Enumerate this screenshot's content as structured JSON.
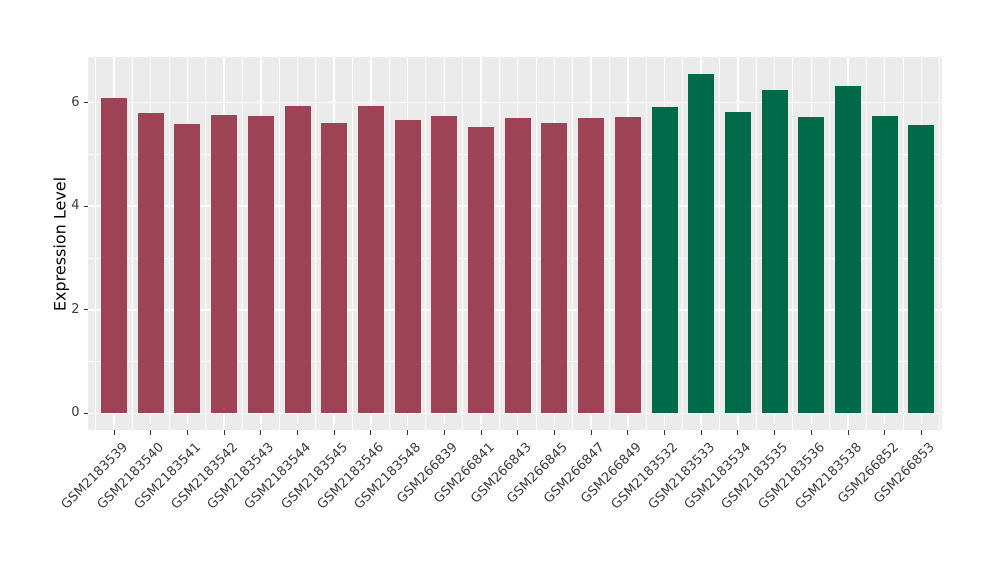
{
  "chart_data": {
    "type": "bar",
    "title": "",
    "xlabel": "",
    "ylabel": "Expression Level",
    "categories": [
      "GSM2183539",
      "GSM2183540",
      "GSM2183541",
      "GSM2183542",
      "GSM2183543",
      "GSM2183544",
      "GSM2183545",
      "GSM2183546",
      "GSM2183548",
      "GSM266839",
      "GSM266841",
      "GSM266843",
      "GSM266845",
      "GSM266847",
      "GSM266849",
      "GSM2183532",
      "GSM2183533",
      "GSM2183534",
      "GSM2183535",
      "GSM2183536",
      "GSM2183538",
      "GSM266852",
      "GSM266853"
    ],
    "values": [
      6.09,
      5.8,
      5.58,
      5.76,
      5.75,
      5.94,
      5.61,
      5.93,
      5.66,
      5.74,
      5.53,
      5.71,
      5.6,
      5.7,
      5.73,
      5.92,
      6.55,
      5.81,
      6.25,
      5.72,
      6.32,
      5.74,
      5.56
    ],
    "groups": [
      "groupA",
      "groupA",
      "groupA",
      "groupA",
      "groupA",
      "groupA",
      "groupA",
      "groupA",
      "groupA",
      "groupA",
      "groupA",
      "groupA",
      "groupA",
      "groupA",
      "groupA",
      "groupB",
      "groupB",
      "groupB",
      "groupB",
      "groupB",
      "groupB",
      "groupB",
      "groupB"
    ],
    "group_colors": {
      "groupA": "#9D4355",
      "groupB": "#016A49"
    },
    "yticks": [
      "0",
      "2",
      "4",
      "6"
    ],
    "ytick_values": [
      0,
      2,
      4,
      6
    ],
    "minor_ytick_values": [
      1,
      3,
      5
    ],
    "ylim": [
      0,
      6.88
    ],
    "grid": true,
    "legend": false
  },
  "style": {
    "figure_background": "#FFFFFF",
    "panel_background": "#EBEBEB",
    "grid_color": "#FFFFFF",
    "axis_text_color": "#3C3C3C",
    "axis_title_color": "#000000",
    "tick_mark_color": "#333333"
  }
}
